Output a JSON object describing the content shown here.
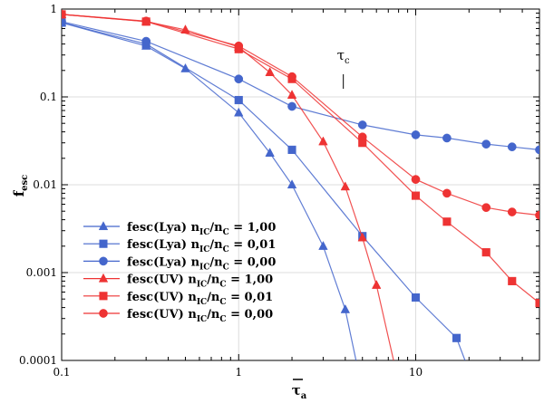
{
  "chart_data": {
    "type": "line",
    "xscale": "log",
    "yscale": "log",
    "xlim": [
      0.1,
      50
    ],
    "ylim": [
      0.0001,
      1
    ],
    "ylabel_main": "f",
    "ylabel_sub": "esc",
    "xlabel_main": "τ",
    "xlabel_sub": "a",
    "xticks": [
      {
        "value": 0.1,
        "label": "0.1"
      },
      {
        "value": 1,
        "label": "1"
      },
      {
        "value": 10,
        "label": "10"
      }
    ],
    "yticks": [
      {
        "value": 1,
        "label": "1"
      },
      {
        "value": 0.1,
        "label": "0.1"
      },
      {
        "value": 0.01,
        "label": "0.01"
      },
      {
        "value": 0.001,
        "label": "0.001"
      },
      {
        "value": 0.0001,
        "label": "0.0001"
      }
    ],
    "annotation": {
      "main": "τ",
      "sub": "c",
      "x": 3.9
    },
    "colors": {
      "blue": "#4466cc",
      "red": "#ee3333"
    },
    "series": [
      {
        "legend_parts": [
          "fesc(Lya) n",
          "IC",
          "/n",
          "C",
          " = 1,00"
        ],
        "color": "#4466cc",
        "marker": "triangle",
        "x": [
          0.1,
          0.3,
          0.5,
          1,
          1.5,
          2,
          3,
          4,
          4.6
        ],
        "y": [
          0.7,
          0.38,
          0.21,
          0.066,
          0.023,
          0.01,
          0.002,
          0.00038,
          0.0001
        ]
      },
      {
        "legend_parts": [
          "fesc(Lya) n",
          "IC",
          "/n",
          "C",
          " = 0,01"
        ],
        "color": "#4466cc",
        "marker": "square",
        "x": [
          0.1,
          0.3,
          1,
          2,
          5,
          10,
          17,
          19
        ],
        "y": [
          0.7,
          0.4,
          0.092,
          0.025,
          0.0026,
          0.00052,
          0.00018,
          0.0001
        ]
      },
      {
        "legend_parts": [
          "fesc(Lya) n",
          "IC",
          "/n",
          "C",
          " = 0,00"
        ],
        "color": "#4466cc",
        "marker": "circle",
        "x": [
          0.1,
          0.3,
          1,
          2,
          5,
          10,
          15,
          25,
          35,
          50
        ],
        "y": [
          0.72,
          0.43,
          0.16,
          0.078,
          0.048,
          0.037,
          0.034,
          0.029,
          0.027,
          0.025
        ]
      },
      {
        "legend_parts": [
          "fesc(UV) n",
          "IC",
          "/n",
          "C",
          " = 1,00"
        ],
        "color": "#ee3333",
        "marker": "triangle",
        "x": [
          0.1,
          0.3,
          0.5,
          1,
          1.5,
          2,
          3,
          4,
          5,
          6,
          7.5
        ],
        "y": [
          0.87,
          0.72,
          0.58,
          0.37,
          0.19,
          0.105,
          0.031,
          0.0095,
          0.0025,
          0.00072,
          0.0001
        ]
      },
      {
        "legend_parts": [
          "fesc(UV) n",
          "IC",
          "/n",
          "C",
          " = 0,01"
        ],
        "color": "#ee3333",
        "marker": "square",
        "x": [
          0.1,
          0.3,
          1,
          2,
          5,
          10,
          15,
          25,
          35,
          50
        ],
        "y": [
          0.87,
          0.72,
          0.35,
          0.16,
          0.03,
          0.0075,
          0.0038,
          0.0017,
          0.0008,
          0.00045
        ]
      },
      {
        "legend_parts": [
          "fesc(UV) n",
          "IC",
          "/n",
          "C",
          " = 0,00"
        ],
        "color": "#ee3333",
        "marker": "circle",
        "x": [
          0.1,
          0.3,
          1,
          2,
          5,
          10,
          15,
          25,
          35,
          50
        ],
        "y": [
          0.87,
          0.73,
          0.38,
          0.17,
          0.035,
          0.0115,
          0.008,
          0.0055,
          0.0049,
          0.0045
        ]
      }
    ]
  }
}
